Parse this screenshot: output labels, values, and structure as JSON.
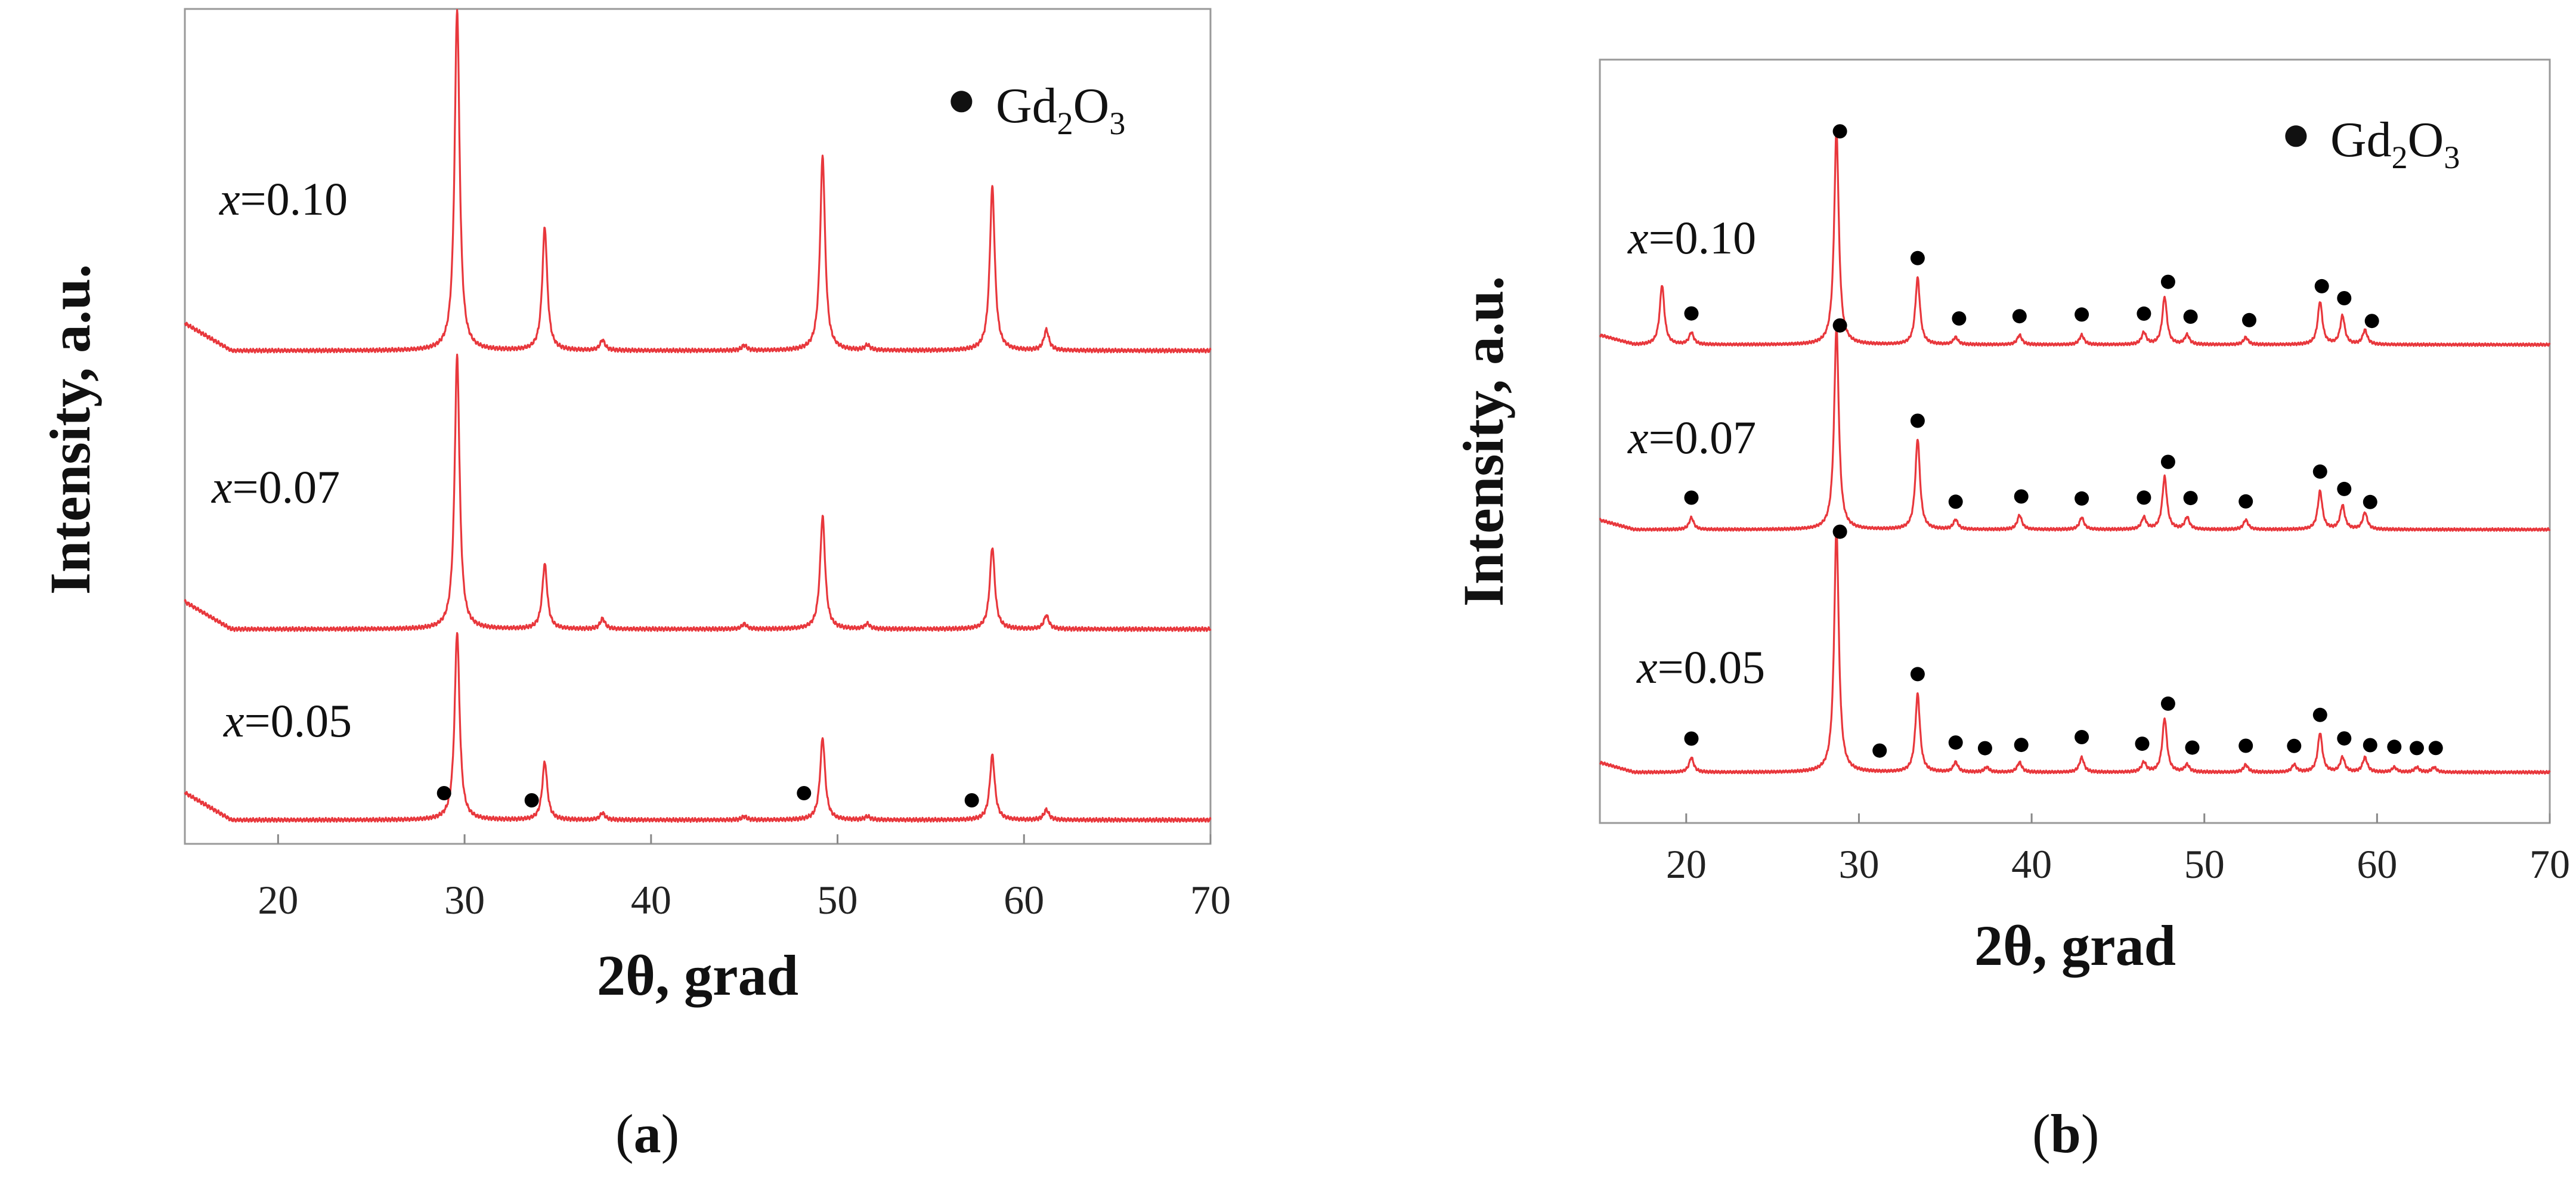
{
  "chart_data": [
    {
      "panel": "a",
      "caption_letter": "a",
      "type": "line",
      "xlabel": "2θ, grad",
      "ylabel": "Intensity, a.u.",
      "xlim": [
        15,
        70
      ],
      "xticks": [
        20,
        30,
        40,
        50,
        60,
        70
      ],
      "legend": {
        "marker": "●",
        "label_main": "Gd",
        "sub1": "2",
        "label_mid": "O",
        "sub2": "3"
      },
      "series": [
        {
          "name": "x=0.10",
          "var": "x",
          "value_text": "=0.10",
          "peaks": [
            [
              29.6,
              100
            ],
            [
              34.3,
              36
            ],
            [
              37.4,
              3
            ],
            [
              45.0,
              1.5
            ],
            [
              49.2,
              57
            ],
            [
              51.6,
              1.5
            ],
            [
              58.3,
              48
            ],
            [
              61.2,
              6
            ]
          ],
          "marks": []
        },
        {
          "name": "x=0.07",
          "var": "x",
          "value_text": "=0.07",
          "peaks": [
            [
              29.6,
              80
            ],
            [
              34.3,
              19
            ],
            [
              37.4,
              3
            ],
            [
              45.0,
              1.5
            ],
            [
              49.2,
              33
            ],
            [
              51.6,
              1.5
            ],
            [
              58.3,
              24
            ],
            [
              61.2,
              4
            ]
          ],
          "marks": []
        },
        {
          "name": "x=0.05",
          "var": "x",
          "value_text": "=0.05",
          "peaks": [
            [
              29.6,
              55
            ],
            [
              34.3,
              17
            ],
            [
              37.4,
              2
            ],
            [
              45.0,
              1
            ],
            [
              49.2,
              24
            ],
            [
              51.6,
              1
            ],
            [
              58.3,
              19
            ],
            [
              61.2,
              3
            ]
          ],
          "marks": [
            28.9,
            33.6,
            48.2,
            57.2
          ]
        }
      ]
    },
    {
      "panel": "b",
      "caption_letter": "b",
      "type": "line",
      "xlabel": "2θ, grad",
      "ylabel": "Intensity, a.u.",
      "xlim": [
        15,
        70
      ],
      "xticks": [
        20,
        30,
        40,
        50,
        60,
        70
      ],
      "legend": {
        "marker": "●",
        "label_main": "Gd",
        "sub1": "2",
        "label_mid": "O",
        "sub2": "3"
      },
      "series": [
        {
          "name": "x=0.10",
          "var": "x",
          "value_text": "=0.10",
          "peaks": [
            [
              18.6,
              25
            ],
            [
              20.3,
              5
            ],
            [
              28.7,
              90
            ],
            [
              33.4,
              28
            ],
            [
              35.6,
              3
            ],
            [
              39.3,
              4
            ],
            [
              42.9,
              4
            ],
            [
              46.5,
              5
            ],
            [
              47.7,
              20
            ],
            [
              49.0,
              4
            ],
            [
              52.4,
              3
            ],
            [
              56.7,
              18
            ],
            [
              58.0,
              12
            ],
            [
              59.3,
              6
            ]
          ],
          "marks": [
            20.3,
            28.9,
            33.4,
            35.8,
            39.3,
            42.9,
            46.5,
            47.9,
            49.2,
            52.6,
            56.8,
            58.1,
            59.7
          ]
        },
        {
          "name": "x=0.07",
          "var": "x",
          "value_text": "=0.07",
          "peaks": [
            [
              20.3,
              5
            ],
            [
              28.7,
              85
            ],
            [
              33.4,
              38
            ],
            [
              35.6,
              4
            ],
            [
              39.3,
              6
            ],
            [
              42.9,
              5
            ],
            [
              46.5,
              5
            ],
            [
              47.7,
              22
            ],
            [
              49.0,
              5
            ],
            [
              52.4,
              4
            ],
            [
              56.7,
              16
            ],
            [
              58.0,
              10
            ],
            [
              59.3,
              7
            ]
          ],
          "marks": [
            20.3,
            28.9,
            33.4,
            35.6,
            39.4,
            42.9,
            46.5,
            47.9,
            49.2,
            52.4,
            56.7,
            58.1,
            59.6
          ]
        },
        {
          "name": "x=0.05",
          "var": "x",
          "value_text": "=0.05",
          "peaks": [
            [
              20.3,
              6
            ],
            [
              28.7,
              100
            ],
            [
              33.4,
              32
            ],
            [
              35.6,
              4
            ],
            [
              37.4,
              2
            ],
            [
              39.3,
              4
            ],
            [
              42.9,
              6
            ],
            [
              46.5,
              4
            ],
            [
              47.7,
              22
            ],
            [
              49.0,
              3
            ],
            [
              52.4,
              3
            ],
            [
              55.2,
              3
            ],
            [
              56.7,
              16
            ],
            [
              58.0,
              6
            ],
            [
              59.3,
              6
            ],
            [
              61.0,
              2
            ],
            [
              62.3,
              2
            ],
            [
              63.3,
              2
            ]
          ],
          "marks": [
            20.3,
            28.9,
            31.2,
            33.4,
            35.6,
            37.3,
            39.4,
            42.9,
            46.4,
            47.9,
            49.3,
            52.4,
            55.2,
            56.7,
            58.1,
            59.6,
            61.0,
            62.3,
            63.4
          ]
        }
      ]
    }
  ]
}
